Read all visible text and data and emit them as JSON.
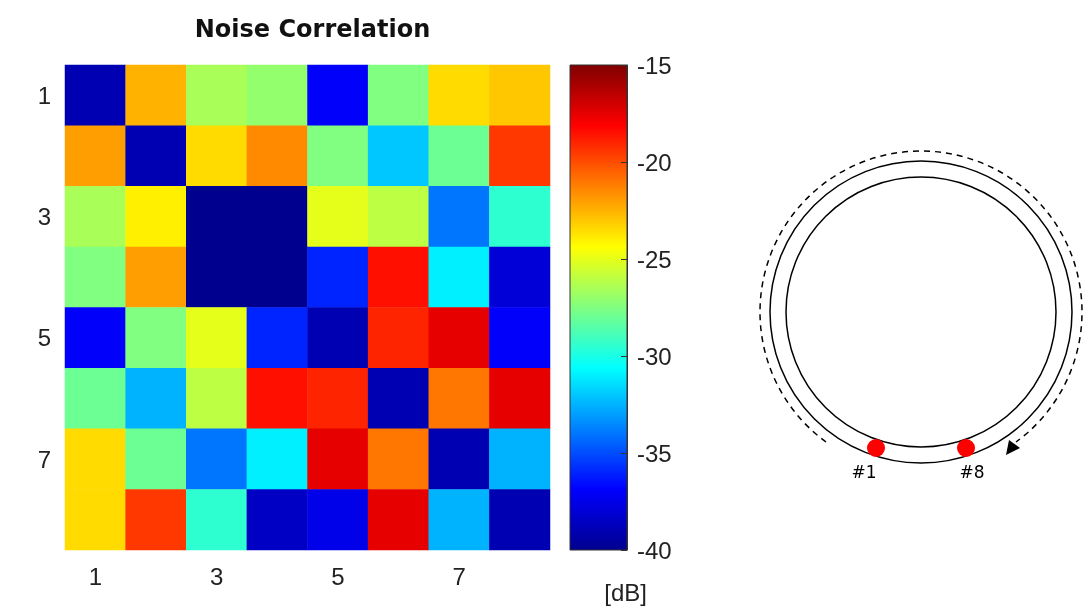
{
  "chart_data": {
    "type": "heatmap",
    "title": "Noise Correlation",
    "categories": [
      "1",
      null,
      "3",
      null,
      "5",
      null,
      "7",
      null
    ],
    "y_categories": [
      "1",
      null,
      "3",
      null,
      "5",
      null,
      "7",
      null
    ],
    "cells": [
      [
        -39,
        -22.5,
        -26.5,
        -27,
        -37,
        -27.5,
        -23.5,
        -23
      ],
      [
        -22,
        -39,
        -23.5,
        -21.5,
        -27.5,
        -32,
        -28,
        -19.5
      ],
      [
        -26.5,
        -24,
        -40,
        -40,
        -25,
        -26,
        -34,
        -29.5
      ],
      [
        -27.5,
        -22,
        -40,
        -40,
        -36,
        -18.5,
        -31,
        -38
      ],
      [
        -37,
        -27.5,
        -25,
        -36,
        -39,
        -19,
        -17.5,
        -37
      ],
      [
        -28,
        -32.5,
        -26,
        -18.5,
        -19,
        -39,
        -21,
        -17.5
      ],
      [
        -23.5,
        -28,
        -34,
        -31,
        -17.5,
        -21,
        -39,
        -32.5
      ],
      [
        -23.5,
        -19.5,
        -29.5,
        -38.5,
        -37.5,
        -17.5,
        -32.5,
        -39
      ]
    ],
    "clim": [
      -40,
      -15
    ],
    "cticks": [
      -40,
      -35,
      -30,
      -25,
      -20,
      -15
    ],
    "clabel": "[dB]",
    "annotations": [
      "#1",
      "#8"
    ]
  }
}
